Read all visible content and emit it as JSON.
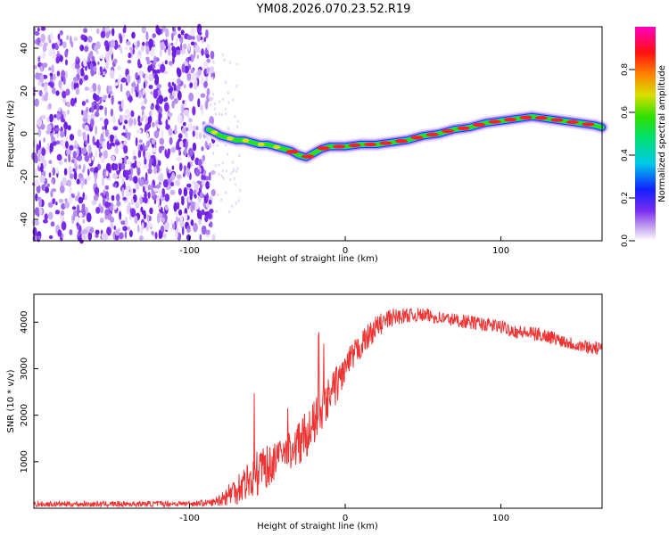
{
  "figure_title": "YM08.2026.070.23.52.R19",
  "colors": {
    "signal": "#ee3333",
    "noise": "#7b2cf0",
    "axis": "#000000"
  },
  "chart_data": [
    {
      "type": "heatmap",
      "title": "YM08.2026.070.23.52.R19",
      "xlabel": "Height of straight line (km)",
      "ylabel": "Frequency (Hz)",
      "xlim": [
        -200,
        165
      ],
      "ylim": [
        -50,
        50
      ],
      "xticks": [
        -100,
        0,
        100
      ],
      "yticks": [
        -40,
        -20,
        0,
        20,
        40
      ],
      "noise_region_x": [
        -200,
        -88
      ],
      "signal_track": {
        "x": [
          -88,
          -85,
          -80,
          -75,
          -70,
          -65,
          -60,
          -55,
          -50,
          -45,
          -40,
          -35,
          -30,
          -25,
          -20,
          -15,
          -10,
          -5,
          0,
          10,
          20,
          30,
          40,
          50,
          60,
          70,
          80,
          90,
          100,
          110,
          120,
          130,
          140,
          150,
          160,
          165
        ],
        "y": [
          2,
          1,
          -1,
          -2,
          -3,
          -3,
          -4,
          -5,
          -5,
          -6,
          -7,
          -8,
          -10,
          -11,
          -9,
          -7,
          -6,
          -6,
          -6,
          -5,
          -5,
          -4,
          -3,
          -1,
          0,
          2,
          3,
          5,
          6,
          7,
          8,
          7,
          6,
          5,
          4,
          3
        ]
      },
      "colorbar": {
        "label": "Normalized spectral amplitude",
        "ticks": [
          "0.0",
          "0.2",
          "0.4",
          "0.6",
          "0.8"
        ],
        "range": [
          0,
          1
        ]
      }
    },
    {
      "type": "line",
      "xlabel": "Height of straight line (km)",
      "ylabel": "SNR (10 * v/v)",
      "xlim": [
        -200,
        165
      ],
      "ylim": [
        0,
        4600
      ],
      "xticks": [
        -100,
        0,
        100
      ],
      "yticks": [
        1000,
        2000,
        3000,
        4000
      ],
      "series": [
        {
          "name": "SNR",
          "x": [
            -200,
            -150,
            -100,
            -85,
            -80,
            -75,
            -70,
            -65,
            -60,
            -55,
            -50,
            -45,
            -40,
            -35,
            -30,
            -25,
            -20,
            -15,
            -10,
            -5,
            0,
            10,
            20,
            30,
            40,
            50,
            60,
            70,
            80,
            90,
            100,
            110,
            120,
            130,
            140,
            150,
            160,
            165
          ],
          "values": [
            90,
            90,
            100,
            120,
            200,
            300,
            420,
            550,
            650,
            800,
            900,
            1000,
            1150,
            1250,
            1400,
            1600,
            1800,
            2100,
            2400,
            2700,
            3000,
            3500,
            3900,
            4100,
            4150,
            4150,
            4100,
            4050,
            4000,
            3950,
            3900,
            3800,
            3750,
            3700,
            3600,
            3500,
            3450,
            3400
          ],
          "noise_amplitude": [
            60,
            60,
            60,
            80,
            150,
            250,
            350,
            400,
            450,
            500,
            450,
            400,
            400,
            450,
            500,
            500,
            500,
            500,
            450,
            400,
            350,
            300,
            250,
            200,
            150,
            150,
            150,
            150,
            150,
            150,
            150,
            150,
            150,
            150,
            150,
            150,
            150,
            150
          ]
        }
      ]
    }
  ]
}
